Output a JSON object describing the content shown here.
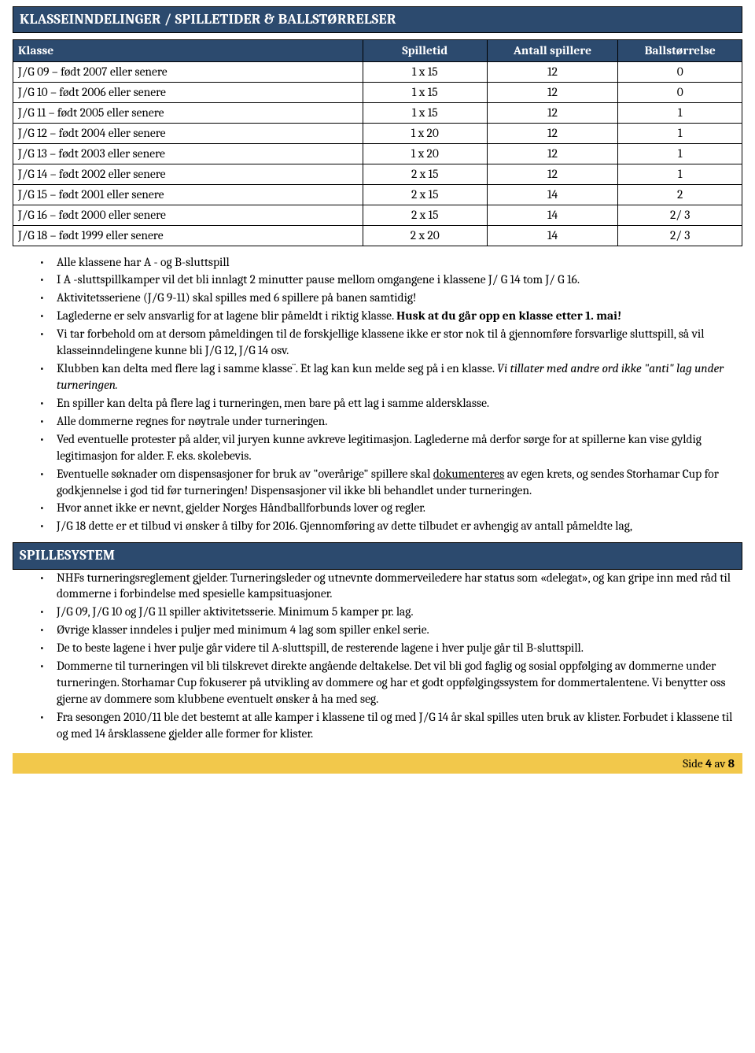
{
  "section1": {
    "title": "KLASSEINNDELINGER / SPILLETIDER & BALLSTØRRELSER"
  },
  "table": {
    "columns": [
      "Klasse",
      "Spilletid",
      "Antall spillere",
      "Ballstørrelse"
    ],
    "rows": [
      [
        "J/G 09 – født 2007 eller senere",
        "1 x 15",
        "12",
        "0"
      ],
      [
        "J/G 10 – født 2006 eller senere",
        "1 x 15",
        "12",
        "0"
      ],
      [
        "J/G 11 – født 2005 eller senere",
        "1 x 15",
        "12",
        "1"
      ],
      [
        "J/G 12 – født 2004 eller senere",
        "1 x 20",
        "12",
        "1"
      ],
      [
        "J/G 13 – født 2003 eller senere",
        "1 x 20",
        "12",
        "1"
      ],
      [
        "J/G 14 – født 2002 eller senere",
        "2 x 15",
        "12",
        "1"
      ],
      [
        "J/G 15 – født 2001 eller senere",
        "2 x 15",
        "14",
        "2"
      ],
      [
        "J/G 16 – født 2000 eller senere",
        "2 x 15",
        "14",
        "2/ 3"
      ],
      [
        "J/G 18 – født 1999 eller senere",
        "2 x 20",
        "14",
        "2/ 3"
      ]
    ]
  },
  "bullets1": {
    "b0": "Alle klassene har A - og B-sluttspill",
    "b1": "I A -sluttspillkamper vil det bli innlagt 2 minutter pause mellom omgangene i klassene J/ G 14 tom J/ G 16.",
    "b2": "Aktivitetsseriene (J/G 9-11) skal spilles med 6 spillere på banen samtidig!",
    "b3a": "Laglederne er selv ansvarlig for at lagene blir påmeldt i riktig klasse. ",
    "b3b": "Husk at du går opp en klasse etter 1. mai!",
    "b4": "Vi tar forbehold om at dersom påmeldingen til de forskjellige klassene ikke er stor nok til å gjennomføre forsvarlige sluttspill, så vil klasseinndelingene kunne bli J/G 12, J/G 14 osv.",
    "b5a": "Klubben kan delta med flere lag i samme klasse¨. Et lag kan kun melde seg på i en klasse. ",
    "b5b": "Vi tillater med andre ord ikke \"anti\" lag under turneringen.",
    "b6": "En spiller kan delta på flere lag i turneringen, men bare på ett lag i samme aldersklasse.",
    "b7": "Alle dommerne regnes for nøytrale under turneringen.",
    "b8": "Ved eventuelle protester på alder, vil juryen kunne avkreve legitimasjon. Laglederne må derfor sørge for at spillerne kan vise gyldig legitimasjon for alder. F. eks. skolebevis.",
    "b9a": "Eventuelle søknader om dispensasjoner for bruk av \"overårige\" spillere skal ",
    "b9u": "dokumenteres",
    "b9b": " av egen krets, og sendes Storhamar Cup for godkjennelse i god tid før turneringen! Dispensasjoner vil ikke bli behandlet under turneringen.",
    "b10": "Hvor annet ikke er nevnt, gjelder Norges Håndballforbunds lover og regler.",
    "b11": "J/G 18 dette er et tilbud vi ønsker å tilby for 2016. Gjennomføring av dette tilbudet er avhengig av antall påmeldte lag,"
  },
  "section2": {
    "title": "SPILLESYSTEM"
  },
  "bullets2": {
    "b0": "NHFs turneringsreglement gjelder. Turneringsleder og utnevnte dommerveiledere har status som «delegat», og kan gripe inn med råd til dommerne i forbindelse med spesielle kampsituasjoner.",
    "b1": "J/G 09, J/G 10 og J/G 11 spiller aktivitetsserie. Minimum 5 kamper pr. lag.",
    "b2": "Øvrige klasser inndeles i puljer med minimum 4 lag som spiller enkel serie.",
    "b3": "De to beste lagene i hver pulje går videre til A-sluttspill, de resterende lagene i hver pulje går til B-sluttspill.",
    "b4": "Dommerne til turneringen vil bli tilskrevet direkte angående deltakelse. Det vil bli god faglig og sosial oppfølging av dommerne under turneringen. Storhamar Cup fokuserer på utvikling av dommere og har et godt oppfølgingssystem for dommertalentene. Vi benytter oss gjerne av dommere som klubbene eventuelt ønsker å ha med seg.",
    "b5": "Fra sesongen 2010/11 ble det bestemt at alle kamper i klassene til og med J/G 14 år skal spilles uten bruk av klister. Forbudet i klassene til og med 14 årsklassene gjelder alle former for klister."
  },
  "footer": {
    "prefix": "Side ",
    "page": "4",
    "middle": " av ",
    "total": "8"
  }
}
